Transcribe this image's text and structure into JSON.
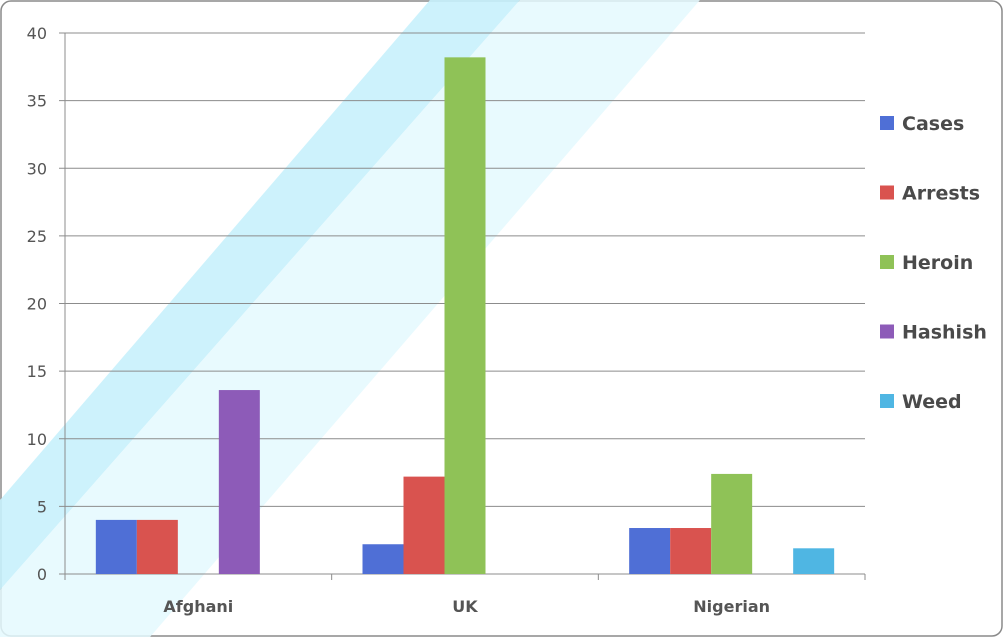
{
  "chart_data": {
    "type": "bar",
    "categories": [
      "Afghani",
      "UK",
      "Nigerian"
    ],
    "series": [
      {
        "name": "Cases",
        "color": "#4f6fd6",
        "values": [
          4.0,
          2.2,
          3.4
        ]
      },
      {
        "name": "Arrests",
        "color": "#d9534f",
        "values": [
          4.0,
          7.2,
          3.4
        ]
      },
      {
        "name": "Heroin",
        "color": "#8fc257",
        "values": [
          null,
          38.2,
          7.4
        ]
      },
      {
        "name": "Hashish",
        "color": "#8d5bb8",
        "values": [
          13.6,
          null,
          null
        ]
      },
      {
        "name": "Weed",
        "color": "#4fb6e3",
        "values": [
          null,
          null,
          1.9
        ]
      }
    ],
    "yticks": [
      0,
      5,
      10,
      15,
      20,
      25,
      30,
      35,
      40
    ],
    "ylim": [
      0,
      40
    ],
    "grid": true,
    "legend": "right",
    "title": "",
    "xlabel": "",
    "ylabel": ""
  }
}
